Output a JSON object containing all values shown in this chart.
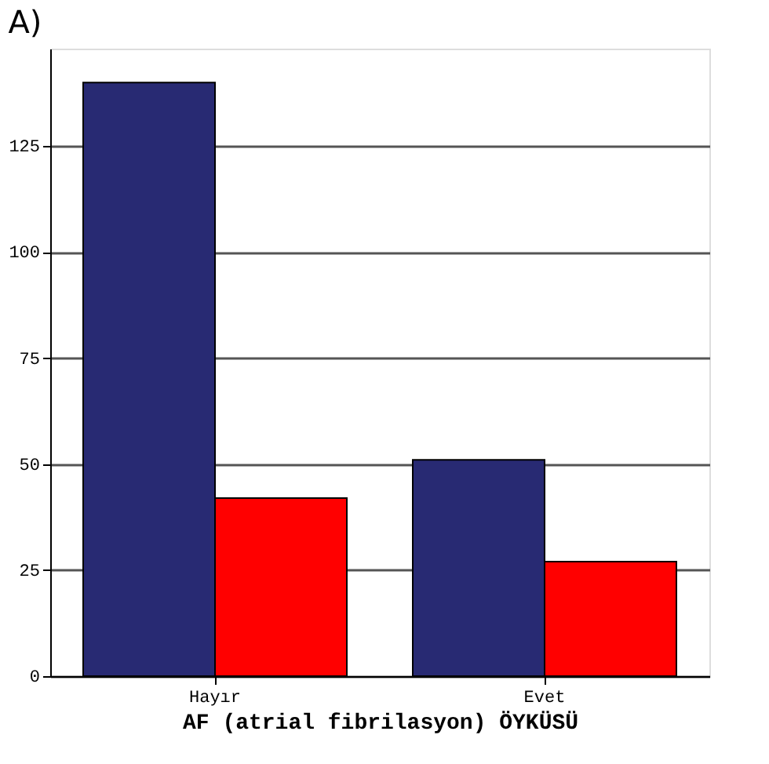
{
  "chart_data": {
    "type": "bar",
    "title": "A)",
    "xlabel": "AF (atrial fibrilasyon) ÖYKÜSÜ",
    "categories": [
      "Hayır",
      "Evet"
    ],
    "series": [
      {
        "color": "#282a73",
        "values": [
          140,
          51
        ]
      },
      {
        "color": "#ff0000",
        "values": [
          42,
          27
        ]
      }
    ],
    "ylim": [
      0,
      148
    ],
    "yticks": [
      0,
      25,
      50,
      75,
      100,
      125
    ],
    "grid": "y",
    "legend": false
  }
}
